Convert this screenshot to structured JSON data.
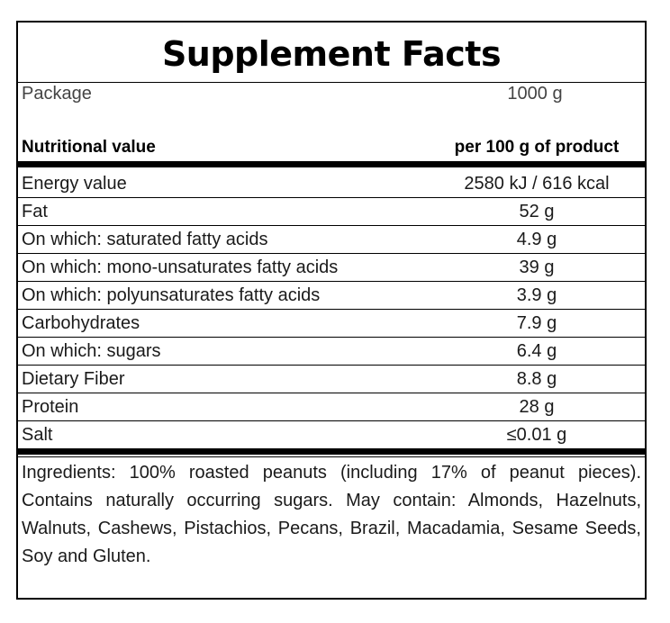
{
  "title": "Supplement Facts",
  "package": {
    "label": "Package",
    "value": "1000 g"
  },
  "header": {
    "label": "Nutritional value",
    "value": "per 100 g of product"
  },
  "nutrients": [
    {
      "label": "Energy value",
      "value": "2580 kJ / 616 kcal"
    },
    {
      "label": "Fat",
      "value": "52 g"
    },
    {
      "label": "On which: saturated fatty acids",
      "value": "4.9 g"
    },
    {
      "label": "On which: mono-unsaturates fatty acids",
      "value": "39 g"
    },
    {
      "label": "On which: polyunsaturates fatty acids",
      "value": "3.9 g"
    },
    {
      "label": "Carbohydrates",
      "value": "7.9 g"
    },
    {
      "label": "On which: sugars",
      "value": "6.4 g"
    },
    {
      "label": "Dietary Fiber",
      "value": "8.8 g"
    },
    {
      "label": "Protein",
      "value": "28 g"
    },
    {
      "label": "Salt",
      "value": "≤0.01 g"
    }
  ],
  "ingredients": "Ingredients: 100% roasted peanuts (including 17% of peanut pieces). Contains naturally occurring sugars. May contain: Almonds, Hazelnuts, Walnuts, Cashews, Pistachios, Pecans, Brazil, Macadamia, Sesame Seeds, Soy and Gluten."
}
